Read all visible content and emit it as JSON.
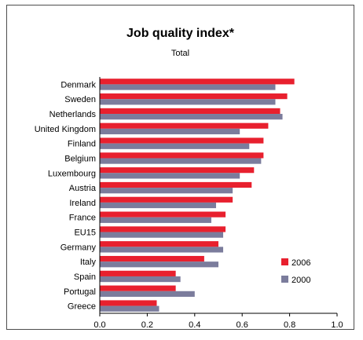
{
  "chart_data": {
    "type": "bar",
    "orientation": "horizontal",
    "title": "Job quality index*",
    "subtitle": "Total",
    "categories": [
      "Denmark",
      "Sweden",
      "Netherlands",
      "United Kingdom",
      "Finland",
      "Belgium",
      "Luxembourg",
      "Austria",
      "Ireland",
      "France",
      "EU15",
      "Germany",
      "Italy",
      "Spain",
      "Portugal",
      "Greece"
    ],
    "series": [
      {
        "name": "2006",
        "color": "#e8202e",
        "values": [
          0.82,
          0.79,
          0.76,
          0.71,
          0.69,
          0.69,
          0.65,
          0.64,
          0.56,
          0.53,
          0.53,
          0.5,
          0.44,
          0.32,
          0.32,
          0.24
        ]
      },
      {
        "name": "2000",
        "color": "#7b7c9c",
        "values": [
          0.74,
          0.74,
          0.77,
          0.59,
          0.63,
          0.68,
          0.59,
          0.56,
          0.49,
          0.47,
          0.52,
          0.52,
          0.5,
          0.34,
          0.4,
          0.25
        ]
      }
    ],
    "xlim": [
      0,
      1.0
    ],
    "xticks": [
      "0.0",
      "0.2",
      "0.4",
      "0.6",
      "0.8",
      "1.0"
    ],
    "grid": false,
    "legend_position": "lower-right"
  }
}
